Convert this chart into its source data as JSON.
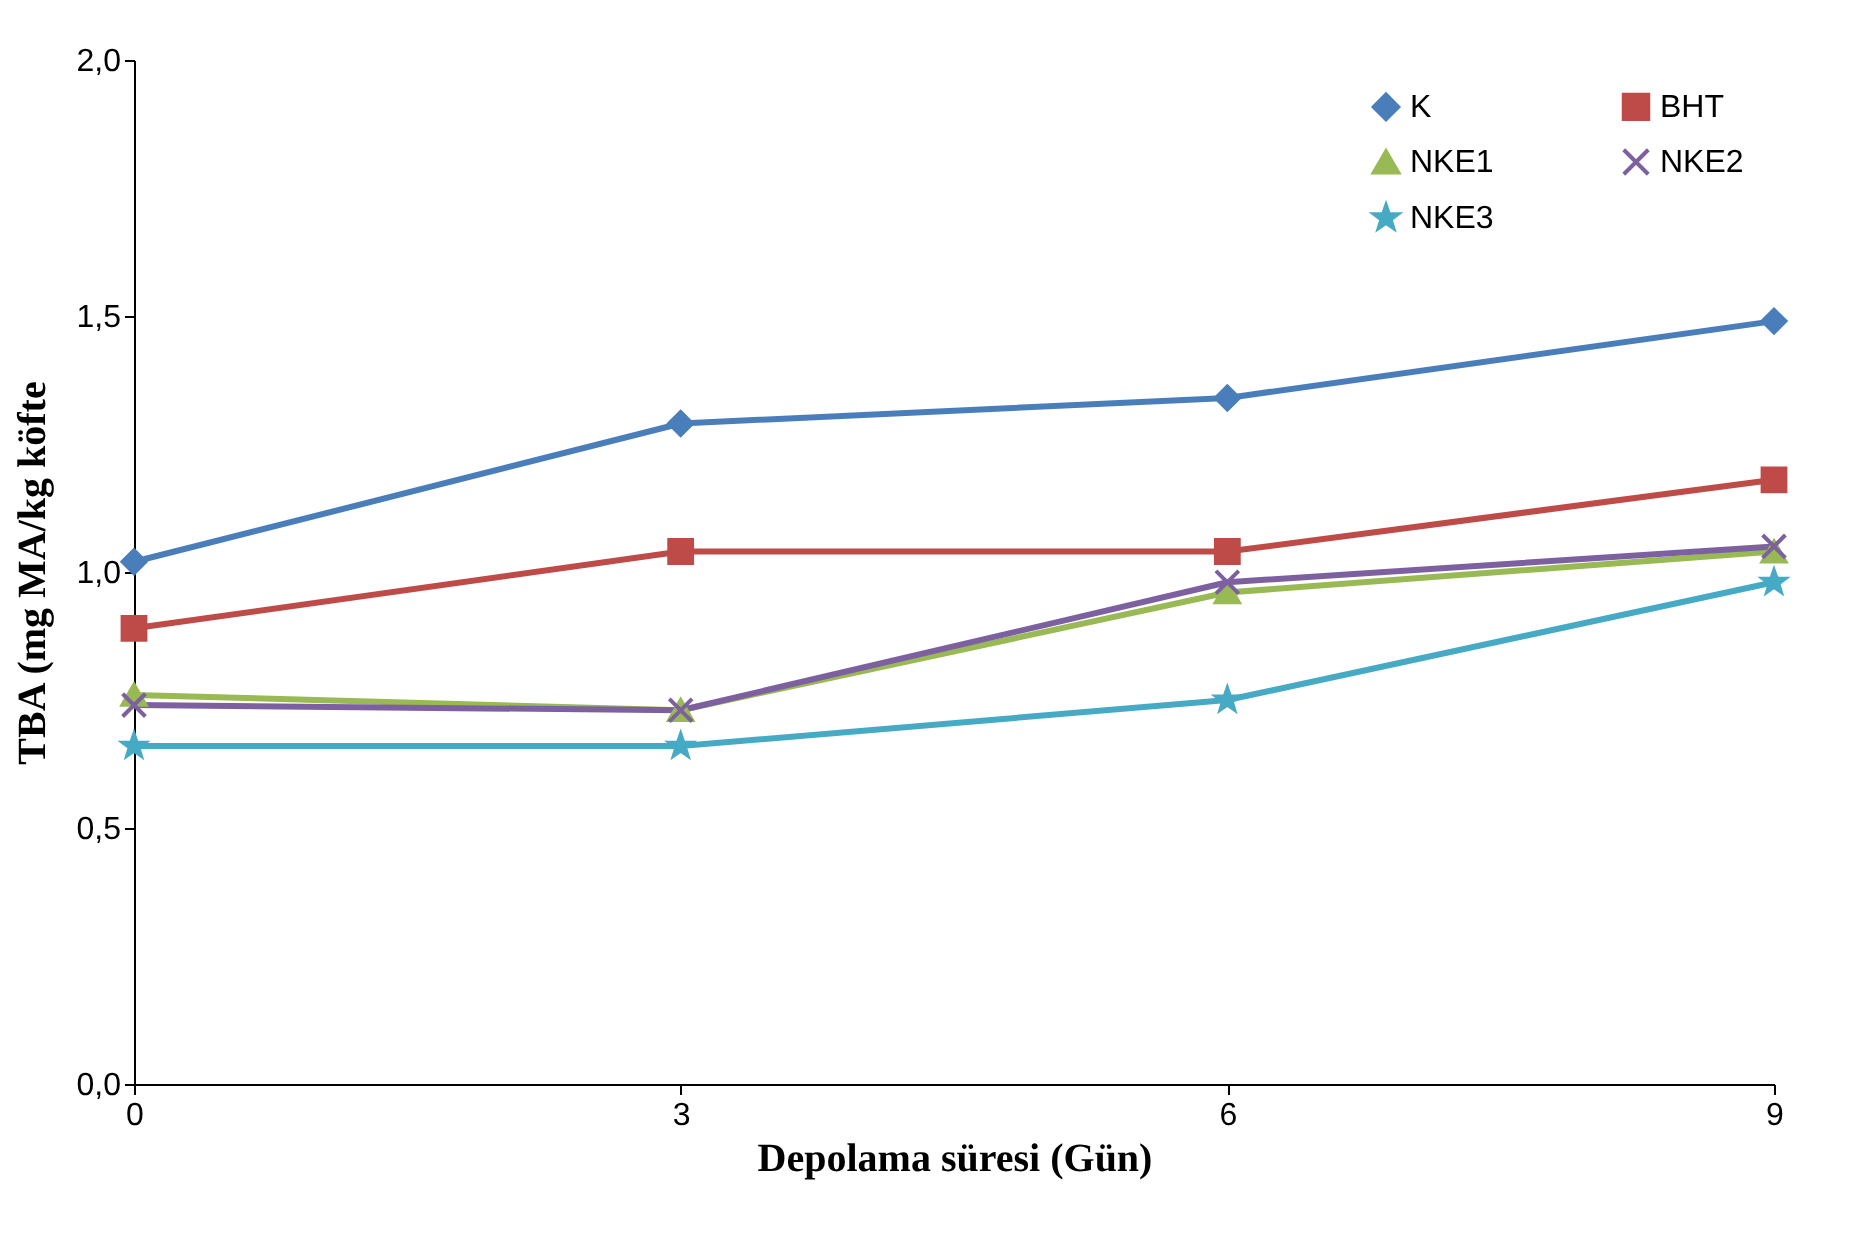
{
  "chart_data": {
    "type": "line",
    "xlabel": "Depolama süresi (Gün)",
    "ylabel": "TBA (mg MA/kg köfte",
    "x": [
      0,
      3,
      6,
      9
    ],
    "xlim": [
      0,
      9
    ],
    "xticks": [
      0,
      3,
      6,
      9
    ],
    "ylim": [
      0,
      2
    ],
    "yticks": [
      {
        "value": 0,
        "label": "0,0"
      },
      {
        "value": 0.5,
        "label": "0,5"
      },
      {
        "value": 1,
        "label": "1,0"
      },
      {
        "value": 1.5,
        "label": "1,5"
      },
      {
        "value": 2,
        "label": "2,0"
      }
    ],
    "grid": false,
    "legend": "top right",
    "line_style": "solid",
    "series": [
      {
        "name": "K",
        "color": "#4a7ebb",
        "marker": "diamond",
        "values": [
          1.02,
          1.29,
          1.34,
          1.49
        ]
      },
      {
        "name": "BHT",
        "color": "#be4b48",
        "marker": "square",
        "values": [
          0.89,
          1.04,
          1.04,
          1.18
        ]
      },
      {
        "name": "NKE1",
        "color": "#98b954",
        "marker": "triangle",
        "values": [
          0.76,
          0.73,
          0.96,
          1.04
        ]
      },
      {
        "name": "NKE2",
        "color": "#7d60a0",
        "marker": "cross",
        "values": [
          0.74,
          0.73,
          0.98,
          1.05
        ]
      },
      {
        "name": "NKE3",
        "color": "#46aac5",
        "marker": "star",
        "values": [
          0.66,
          0.66,
          0.75,
          0.98
        ]
      }
    ]
  }
}
